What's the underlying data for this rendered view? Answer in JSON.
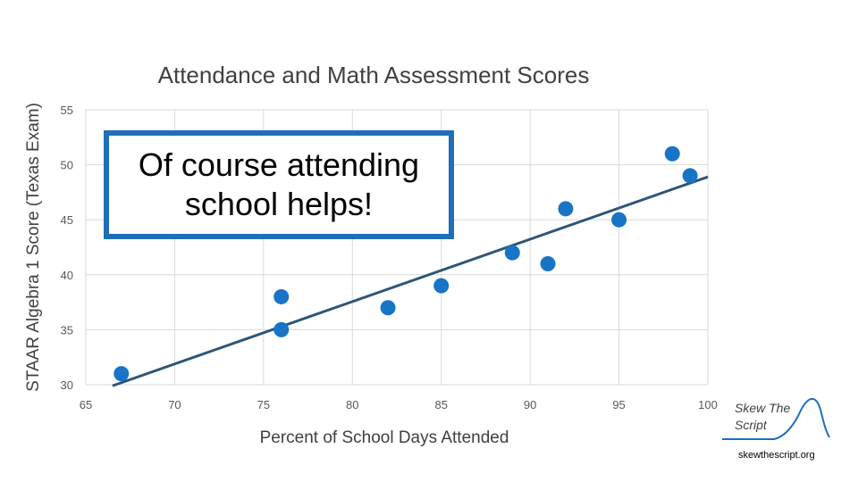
{
  "chart_data": {
    "type": "scatter",
    "title": "Attendance and Math Assessment Scores",
    "xlabel": "Percent of School Days Attended",
    "ylabel": "STAAR Algebra 1 Score (Texas Exam)",
    "xlim": [
      65,
      100
    ],
    "ylim": [
      30,
      55
    ],
    "xticks": [
      65,
      70,
      75,
      80,
      85,
      90,
      95,
      100
    ],
    "yticks": [
      30,
      35,
      40,
      45,
      50,
      55
    ],
    "grid": true,
    "points": [
      {
        "x": 67,
        "y": 31
      },
      {
        "x": 76,
        "y": 38
      },
      {
        "x": 76,
        "y": 35
      },
      {
        "x": 82,
        "y": 37
      },
      {
        "x": 85,
        "y": 39
      },
      {
        "x": 89,
        "y": 42
      },
      {
        "x": 91,
        "y": 41
      },
      {
        "x": 92,
        "y": 46
      },
      {
        "x": 95,
        "y": 45
      },
      {
        "x": 98,
        "y": 51
      },
      {
        "x": 99,
        "y": 49
      }
    ],
    "trendline": {
      "x": [
        66.5,
        100
      ],
      "y": [
        29.9,
        48.9
      ]
    },
    "colors": {
      "points": "#1874c7",
      "trendline": "#2e5577",
      "grid": "#d9d9d9",
      "callout_border": "#1f6fb8"
    }
  },
  "callout": {
    "line1": "Of course attending",
    "line2": "school helps!"
  },
  "logo": {
    "line1": "Skew The",
    "line2": "Script"
  },
  "footer": {
    "url": "skewthescript.org"
  }
}
